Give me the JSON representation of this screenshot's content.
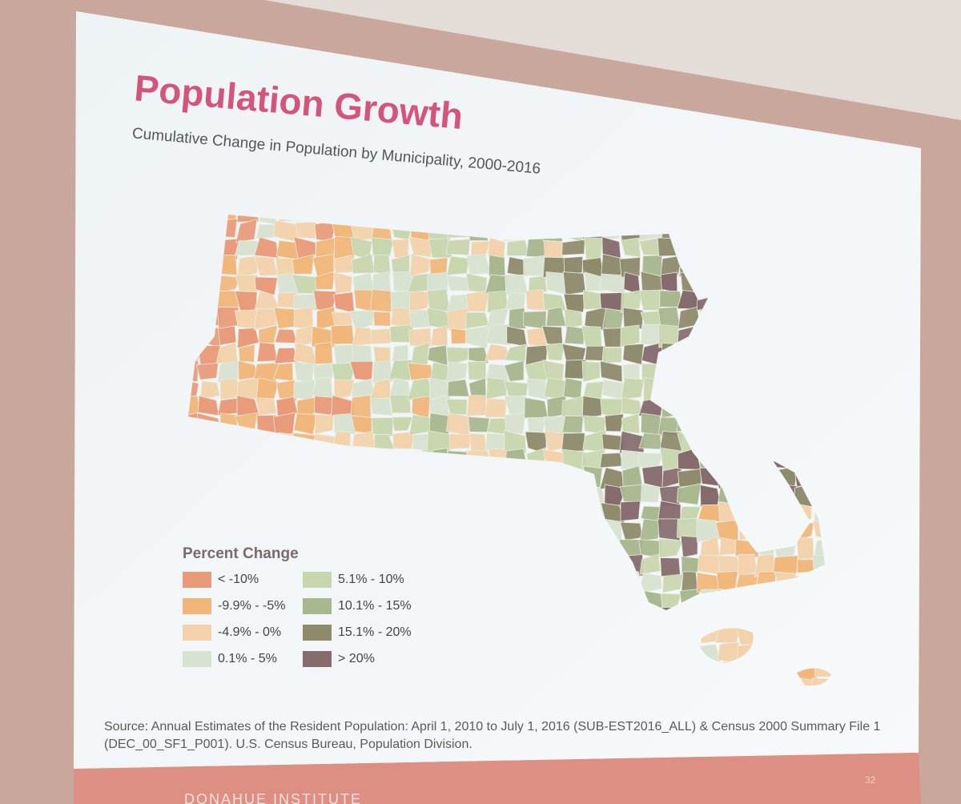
{
  "header": {
    "title": "Population Growth",
    "subtitle": "Cumulative Change in Population by Municipality, 2000-2016"
  },
  "legend": {
    "title": "Percent Change",
    "items": [
      {
        "label": "< -10%",
        "color": "#e99a78"
      },
      {
        "label": "-9.9% - -5%",
        "color": "#f1b77a"
      },
      {
        "label": "-4.9% - 0%",
        "color": "#f3d2ab"
      },
      {
        "label": "0.1% - 5%",
        "color": "#d8e2d0"
      },
      {
        "label": "5.1% - 10%",
        "color": "#c8d6ae"
      },
      {
        "label": "10.1% - 15%",
        "color": "#a8b78e"
      },
      {
        "label": "15.1% - 20%",
        "color": "#8e8a6c"
      },
      {
        "label": "> 20%",
        "color": "#866b6d"
      }
    ]
  },
  "source": [
    "Source: Annual Estimates of the Resident Population: April 1, 2010 to July 1, 2016 (SUB-EST2016_ALL) & Census 2000 Summary File 1",
    "(DEC_00_SF1_P001). U.S. Census Bureau, Population Division."
  ],
  "footer": {
    "page": "32",
    "org": "DONAHUE INSTITUTE"
  }
}
